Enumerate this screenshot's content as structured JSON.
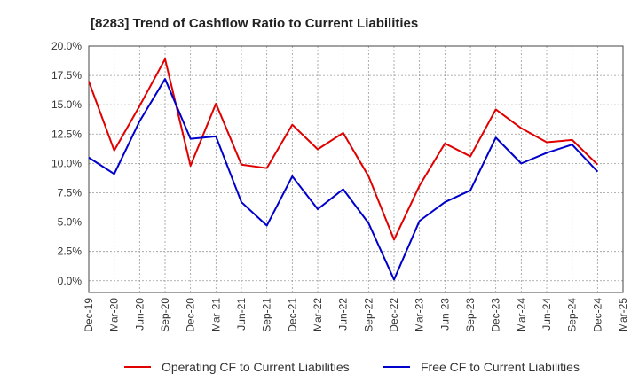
{
  "chart_data": {
    "type": "line",
    "title": "[8283]  Trend of Cashflow Ratio to Current Liabilities",
    "xlabel": "",
    "ylabel": "",
    "x": [
      "Dec-19",
      "Mar-20",
      "Jun-20",
      "Sep-20",
      "Dec-20",
      "Mar-21",
      "Jun-21",
      "Sep-21",
      "Dec-21",
      "Mar-22",
      "Jun-22",
      "Sep-22",
      "Dec-22",
      "Mar-23",
      "Jun-23",
      "Sep-23",
      "Dec-23",
      "Mar-24",
      "Jun-24",
      "Sep-24",
      "Dec-24",
      "Mar-25"
    ],
    "ylim": [
      -1.0,
      20.0
    ],
    "yticks": [
      0.0,
      2.5,
      5.0,
      7.5,
      10.0,
      12.5,
      15.0,
      17.5,
      20.0
    ],
    "ytick_labels": [
      "0.0%",
      "2.5%",
      "5.0%",
      "7.5%",
      "10.0%",
      "12.5%",
      "15.0%",
      "17.5%",
      "20.0%"
    ],
    "grid": true,
    "legend_position": "bottom",
    "series": [
      {
        "name": "Operating CF to Current Liabilities",
        "color": "#e00000",
        "values": [
          17.0,
          11.1,
          14.9,
          18.9,
          9.8,
          15.1,
          9.9,
          9.6,
          13.3,
          11.2,
          12.6,
          8.9,
          3.5,
          8.1,
          11.7,
          10.6,
          14.6,
          13.0,
          11.8,
          12.0,
          9.9,
          null
        ]
      },
      {
        "name": "Free CF to Current Liabilities",
        "color": "#0000cc",
        "values": [
          10.5,
          9.1,
          13.6,
          17.2,
          12.1,
          12.3,
          6.7,
          4.7,
          8.9,
          6.1,
          7.8,
          4.9,
          0.1,
          5.1,
          6.7,
          7.7,
          12.2,
          10.0,
          10.9,
          11.6,
          9.3,
          null
        ]
      }
    ]
  }
}
